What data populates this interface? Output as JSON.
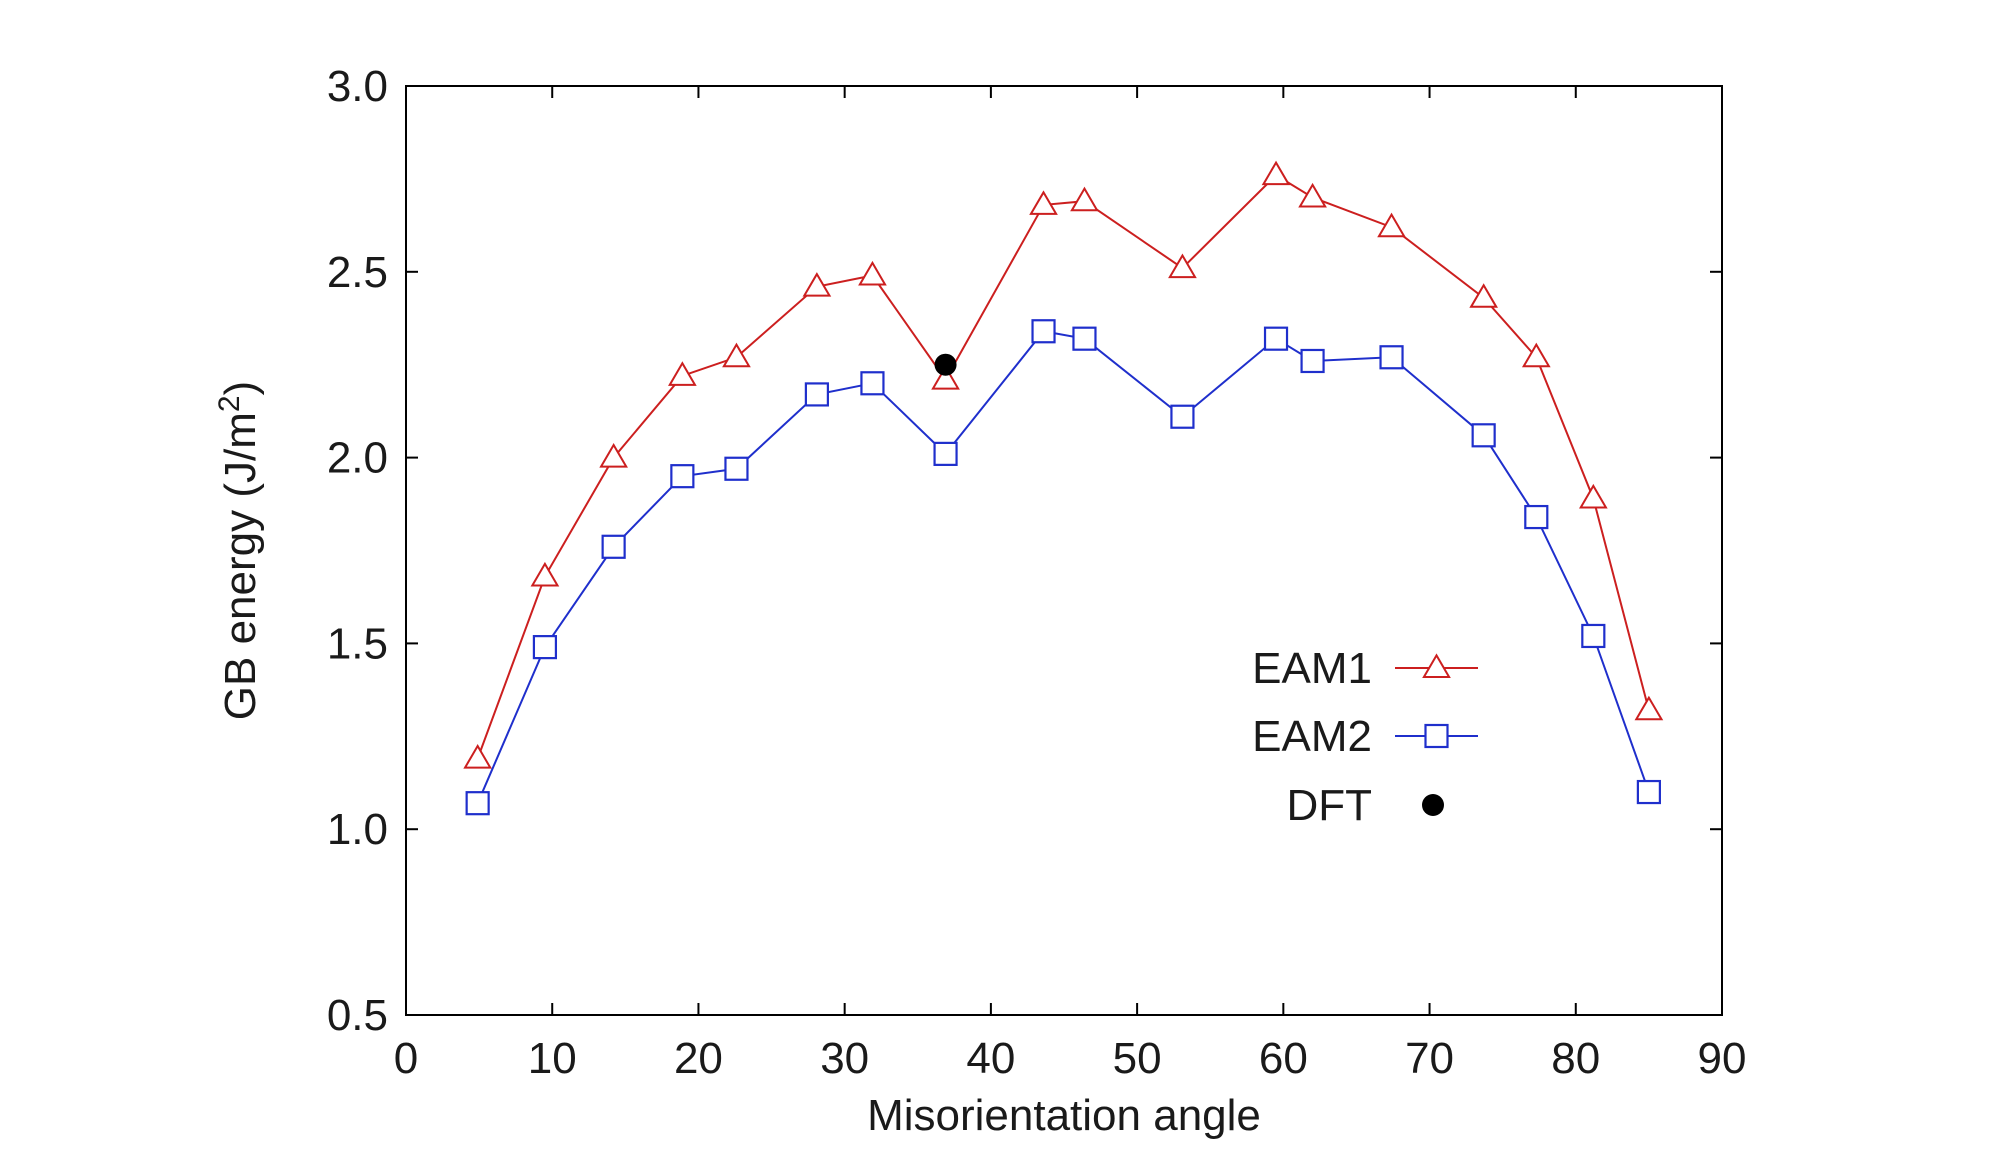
{
  "chart_data": {
    "type": "line",
    "title": "",
    "xlabel": "Misorientation angle",
    "ylabel_main": "GB energy (J/m",
    "ylabel_sup": "2",
    "ylabel_close": ")",
    "xlim": [
      0,
      90
    ],
    "ylim": [
      0.5,
      3.0
    ],
    "x_ticks": [
      0,
      10,
      20,
      30,
      40,
      50,
      60,
      70,
      80,
      90
    ],
    "x_tick_labels": [
      "0",
      "10",
      "20",
      "30",
      "40",
      "50",
      "60",
      "70",
      "80",
      "90"
    ],
    "y_ticks": [
      0.5,
      1.0,
      1.5,
      2.0,
      2.5,
      3.0
    ],
    "y_tick_labels": [
      "0.5",
      "1.0",
      "1.5",
      "2.0",
      "2.5",
      "3.0"
    ],
    "grid": false,
    "legend_position": "lower-right",
    "series": [
      {
        "name": "EAM1",
        "marker": "triangle",
        "color": "#cc1f1f",
        "x": [
          4.9,
          9.5,
          14.2,
          18.9,
          22.6,
          28.1,
          31.9,
          36.9,
          43.6,
          46.4,
          53.1,
          59.5,
          62.0,
          67.4,
          73.7,
          77.3,
          81.2,
          85.0
        ],
        "y": [
          1.19,
          1.68,
          2.0,
          2.22,
          2.27,
          2.46,
          2.49,
          2.21,
          2.68,
          2.69,
          2.51,
          2.76,
          2.7,
          2.62,
          2.43,
          2.27,
          1.89,
          1.32
        ]
      },
      {
        "name": "EAM2",
        "marker": "square",
        "color": "#1f2fcc",
        "x": [
          4.9,
          9.5,
          14.2,
          18.9,
          22.6,
          28.1,
          31.9,
          36.9,
          43.6,
          46.4,
          53.1,
          59.5,
          62.0,
          67.4,
          73.7,
          77.3,
          81.2,
          85.0
        ],
        "y": [
          1.07,
          1.49,
          1.76,
          1.95,
          1.97,
          2.17,
          2.2,
          2.01,
          2.34,
          2.32,
          2.11,
          2.32,
          2.26,
          2.27,
          2.06,
          1.84,
          1.52,
          1.1
        ]
      },
      {
        "name": "DFT",
        "marker": "filled-circle",
        "color": "#000000",
        "x": [
          36.9
        ],
        "y": [
          2.25
        ]
      }
    ]
  }
}
